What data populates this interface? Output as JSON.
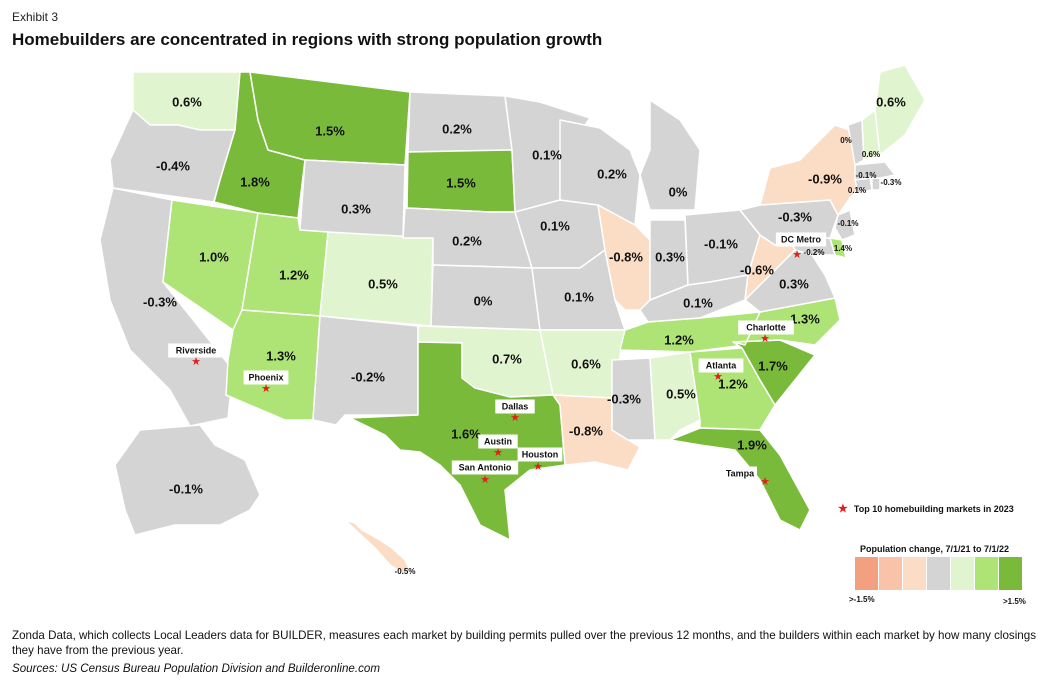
{
  "exhibit": "Exhibit 3",
  "title": "Homebuilders are concentrated in regions with strong population growth",
  "colors": {
    "neg_high": "#f2a07f",
    "neg_mid": "#f8c3a8",
    "neg_low": "#fbdcc4",
    "neutral": "#d4d4d4",
    "pos_low": "#e0f4cf",
    "pos_mid": "#aee376",
    "pos_high": "#7aba3a",
    "star": "#e0201b"
  },
  "states": [
    {
      "id": "WA",
      "label": "0.6%",
      "class": "pos_low"
    },
    {
      "id": "OR",
      "label": "-0.4%",
      "class": "neutral"
    },
    {
      "id": "CA",
      "label": "-0.3%",
      "class": "neutral"
    },
    {
      "id": "NV",
      "label": "1.0%",
      "class": "pos_mid"
    },
    {
      "id": "ID",
      "label": "1.8%",
      "class": "pos_high"
    },
    {
      "id": "MT",
      "label": "1.5%",
      "class": "pos_high"
    },
    {
      "id": "WY",
      "label": "0.3%",
      "class": "neutral"
    },
    {
      "id": "UT",
      "label": "1.2%",
      "class": "pos_mid"
    },
    {
      "id": "AZ",
      "label": "1.3%",
      "class": "pos_mid"
    },
    {
      "id": "CO",
      "label": "0.5%",
      "class": "pos_low"
    },
    {
      "id": "NM",
      "label": "-0.2%",
      "class": "neutral"
    },
    {
      "id": "ND",
      "label": "0.2%",
      "class": "neutral"
    },
    {
      "id": "SD",
      "label": "1.5%",
      "class": "pos_high"
    },
    {
      "id": "NE",
      "label": "0.2%",
      "class": "neutral"
    },
    {
      "id": "KS",
      "label": "0%",
      "class": "neutral"
    },
    {
      "id": "OK",
      "label": "0.7%",
      "class": "pos_low"
    },
    {
      "id": "TX",
      "label": "1.6%",
      "class": "pos_high"
    },
    {
      "id": "MN",
      "label": "0.1%",
      "class": "neutral"
    },
    {
      "id": "IA",
      "label": "0.1%",
      "class": "neutral"
    },
    {
      "id": "MO",
      "label": "0.1%",
      "class": "neutral"
    },
    {
      "id": "AR",
      "label": "0.6%",
      "class": "pos_low"
    },
    {
      "id": "LA",
      "label": "-0.8%",
      "class": "neg_low"
    },
    {
      "id": "WI",
      "label": "0.2%",
      "class": "neutral"
    },
    {
      "id": "IL",
      "label": "-0.8%",
      "class": "neg_low"
    },
    {
      "id": "MI",
      "label": "0%",
      "class": "neutral"
    },
    {
      "id": "IN",
      "label": "0.3%",
      "class": "neutral"
    },
    {
      "id": "OH",
      "label": "-0.1%",
      "class": "neutral"
    },
    {
      "id": "KY",
      "label": "0.1%",
      "class": "neutral"
    },
    {
      "id": "TN",
      "label": "1.2%",
      "class": "pos_mid"
    },
    {
      "id": "MS",
      "label": "-0.3%",
      "class": "neutral"
    },
    {
      "id": "AL",
      "label": "0.5%",
      "class": "pos_low"
    },
    {
      "id": "GA",
      "label": "1.2%",
      "class": "pos_mid"
    },
    {
      "id": "FL",
      "label": "1.9%",
      "class": "pos_high"
    },
    {
      "id": "SC",
      "label": "1.7%",
      "class": "pos_high"
    },
    {
      "id": "NC",
      "label": "1.3%",
      "class": "pos_mid"
    },
    {
      "id": "VA",
      "label": "0.3%",
      "class": "neutral"
    },
    {
      "id": "WV",
      "label": "-0.6%",
      "class": "neg_low"
    },
    {
      "id": "PA",
      "label": "-0.3%",
      "class": "neutral"
    },
    {
      "id": "NY",
      "label": "-0.9%",
      "class": "neg_low"
    },
    {
      "id": "MD",
      "label": "-0.2%",
      "class": "neutral"
    },
    {
      "id": "DE",
      "label": "1.4%",
      "class": "pos_mid"
    },
    {
      "id": "NJ",
      "label": "-0.1%",
      "class": "neutral"
    },
    {
      "id": "CT",
      "label": "-0.1%",
      "class": "neutral"
    },
    {
      "id": "RI",
      "label": "-0.3%",
      "class": "neutral"
    },
    {
      "id": "MA",
      "label": "0.1%",
      "class": "neutral"
    },
    {
      "id": "VT",
      "label": "0%",
      "class": "neutral"
    },
    {
      "id": "NH",
      "label": "0.6%",
      "class": "pos_low"
    },
    {
      "id": "ME",
      "label": "0.6%",
      "class": "pos_low"
    },
    {
      "id": "AK",
      "label": "-0.1%",
      "class": "neutral"
    },
    {
      "id": "HI",
      "label": "-0.5%",
      "class": "neg_low"
    }
  ],
  "cities": [
    {
      "name": "Riverside"
    },
    {
      "name": "Phoenix"
    },
    {
      "name": "Dallas"
    },
    {
      "name": "Austin"
    },
    {
      "name": "San Antonio"
    },
    {
      "name": "Houston"
    },
    {
      "name": "Atlanta"
    },
    {
      "name": "Charlotte"
    },
    {
      "name": "Tampa"
    },
    {
      "name": "DC Metro"
    }
  ],
  "legend": {
    "star_label": "Top 10 homebuilding markets in 2023",
    "title": "Population change, 7/1/21 to 7/1/22",
    "min_label": ">-1.5%",
    "max_label": ">1.5%",
    "swatches": [
      "neg_high",
      "neg_mid",
      "neg_low",
      "neutral",
      "pos_low",
      "pos_mid",
      "pos_high"
    ]
  },
  "note": "Zonda Data, which collects Local Leaders data for BUILDER, measures each market by building permits pulled over the previous 12 months, and the builders within each market by how many closings they have from the previous year.",
  "source": "Sources: US Census Bureau Population Division and Builderonline.com"
}
